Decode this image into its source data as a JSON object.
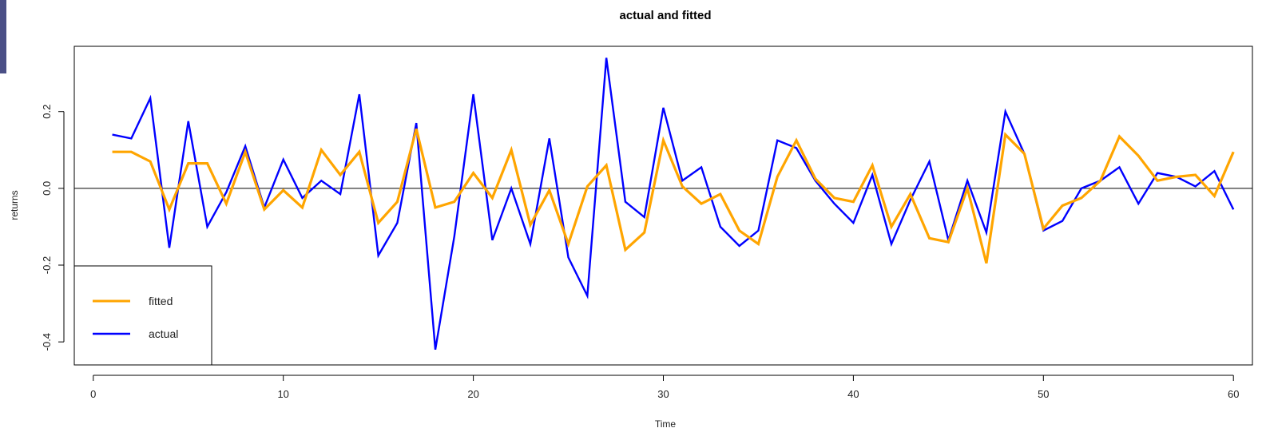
{
  "chart_data": {
    "type": "line",
    "title": "actual and fitted",
    "xlabel": "Time",
    "ylabel": "returns",
    "xlim": [
      -1,
      61
    ],
    "ylim": [
      -0.46,
      0.37
    ],
    "x_ticks": [
      0,
      10,
      20,
      30,
      40,
      50,
      60
    ],
    "y_ticks": [
      -0.4,
      -0.2,
      0.0,
      0.2
    ],
    "y_tick_labels": [
      "-0.4",
      "-0.2",
      "0.0",
      "0.2"
    ],
    "reference_line_y": 0,
    "grid": false,
    "legend_position": "bottom-left",
    "x": [
      1,
      2,
      3,
      4,
      5,
      6,
      7,
      8,
      9,
      10,
      11,
      12,
      13,
      14,
      15,
      16,
      17,
      18,
      19,
      20,
      21,
      22,
      23,
      24,
      25,
      26,
      27,
      28,
      29,
      30,
      31,
      32,
      33,
      34,
      35,
      36,
      37,
      38,
      39,
      40,
      41,
      42,
      43,
      44,
      45,
      46,
      47,
      48,
      49,
      50,
      51,
      52,
      53,
      54,
      55,
      56,
      57,
      58,
      59,
      60
    ],
    "series": [
      {
        "name": "actual",
        "color": "#0000ff",
        "values": [
          0.14,
          0.13,
          0.235,
          -0.155,
          0.175,
          -0.1,
          -0.01,
          0.11,
          -0.05,
          0.075,
          -0.025,
          0.02,
          -0.015,
          0.245,
          -0.175,
          -0.09,
          0.17,
          -0.42,
          -0.125,
          0.245,
          -0.135,
          0.0,
          -0.145,
          0.13,
          -0.18,
          -0.28,
          0.34,
          -0.035,
          -0.075,
          0.21,
          0.02,
          0.055,
          -0.1,
          -0.15,
          -0.11,
          0.125,
          0.105,
          0.02,
          -0.04,
          -0.09,
          0.035,
          -0.145,
          -0.03,
          0.07,
          -0.135,
          0.02,
          -0.115,
          0.2,
          0.09,
          -0.11,
          -0.085,
          0.0,
          0.02,
          0.055,
          -0.04,
          0.04,
          0.03,
          0.005,
          0.045,
          -0.055
        ]
      },
      {
        "name": "fitted",
        "color": "#ffa500",
        "values": [
          0.095,
          0.095,
          0.07,
          -0.055,
          0.065,
          0.065,
          -0.04,
          0.095,
          -0.055,
          -0.005,
          -0.05,
          0.1,
          0.035,
          0.095,
          -0.09,
          -0.035,
          0.155,
          -0.05,
          -0.035,
          0.04,
          -0.025,
          0.1,
          -0.095,
          -0.005,
          -0.145,
          0.005,
          0.06,
          -0.16,
          -0.115,
          0.125,
          0.005,
          -0.04,
          -0.015,
          -0.11,
          -0.145,
          0.03,
          0.125,
          0.025,
          -0.025,
          -0.035,
          0.06,
          -0.1,
          -0.015,
          -0.13,
          -0.14,
          0.0,
          -0.195,
          0.14,
          0.09,
          -0.105,
          -0.045,
          -0.025,
          0.02,
          0.135,
          0.085,
          0.02,
          0.03,
          0.035,
          -0.02,
          0.095
        ]
      }
    ]
  }
}
